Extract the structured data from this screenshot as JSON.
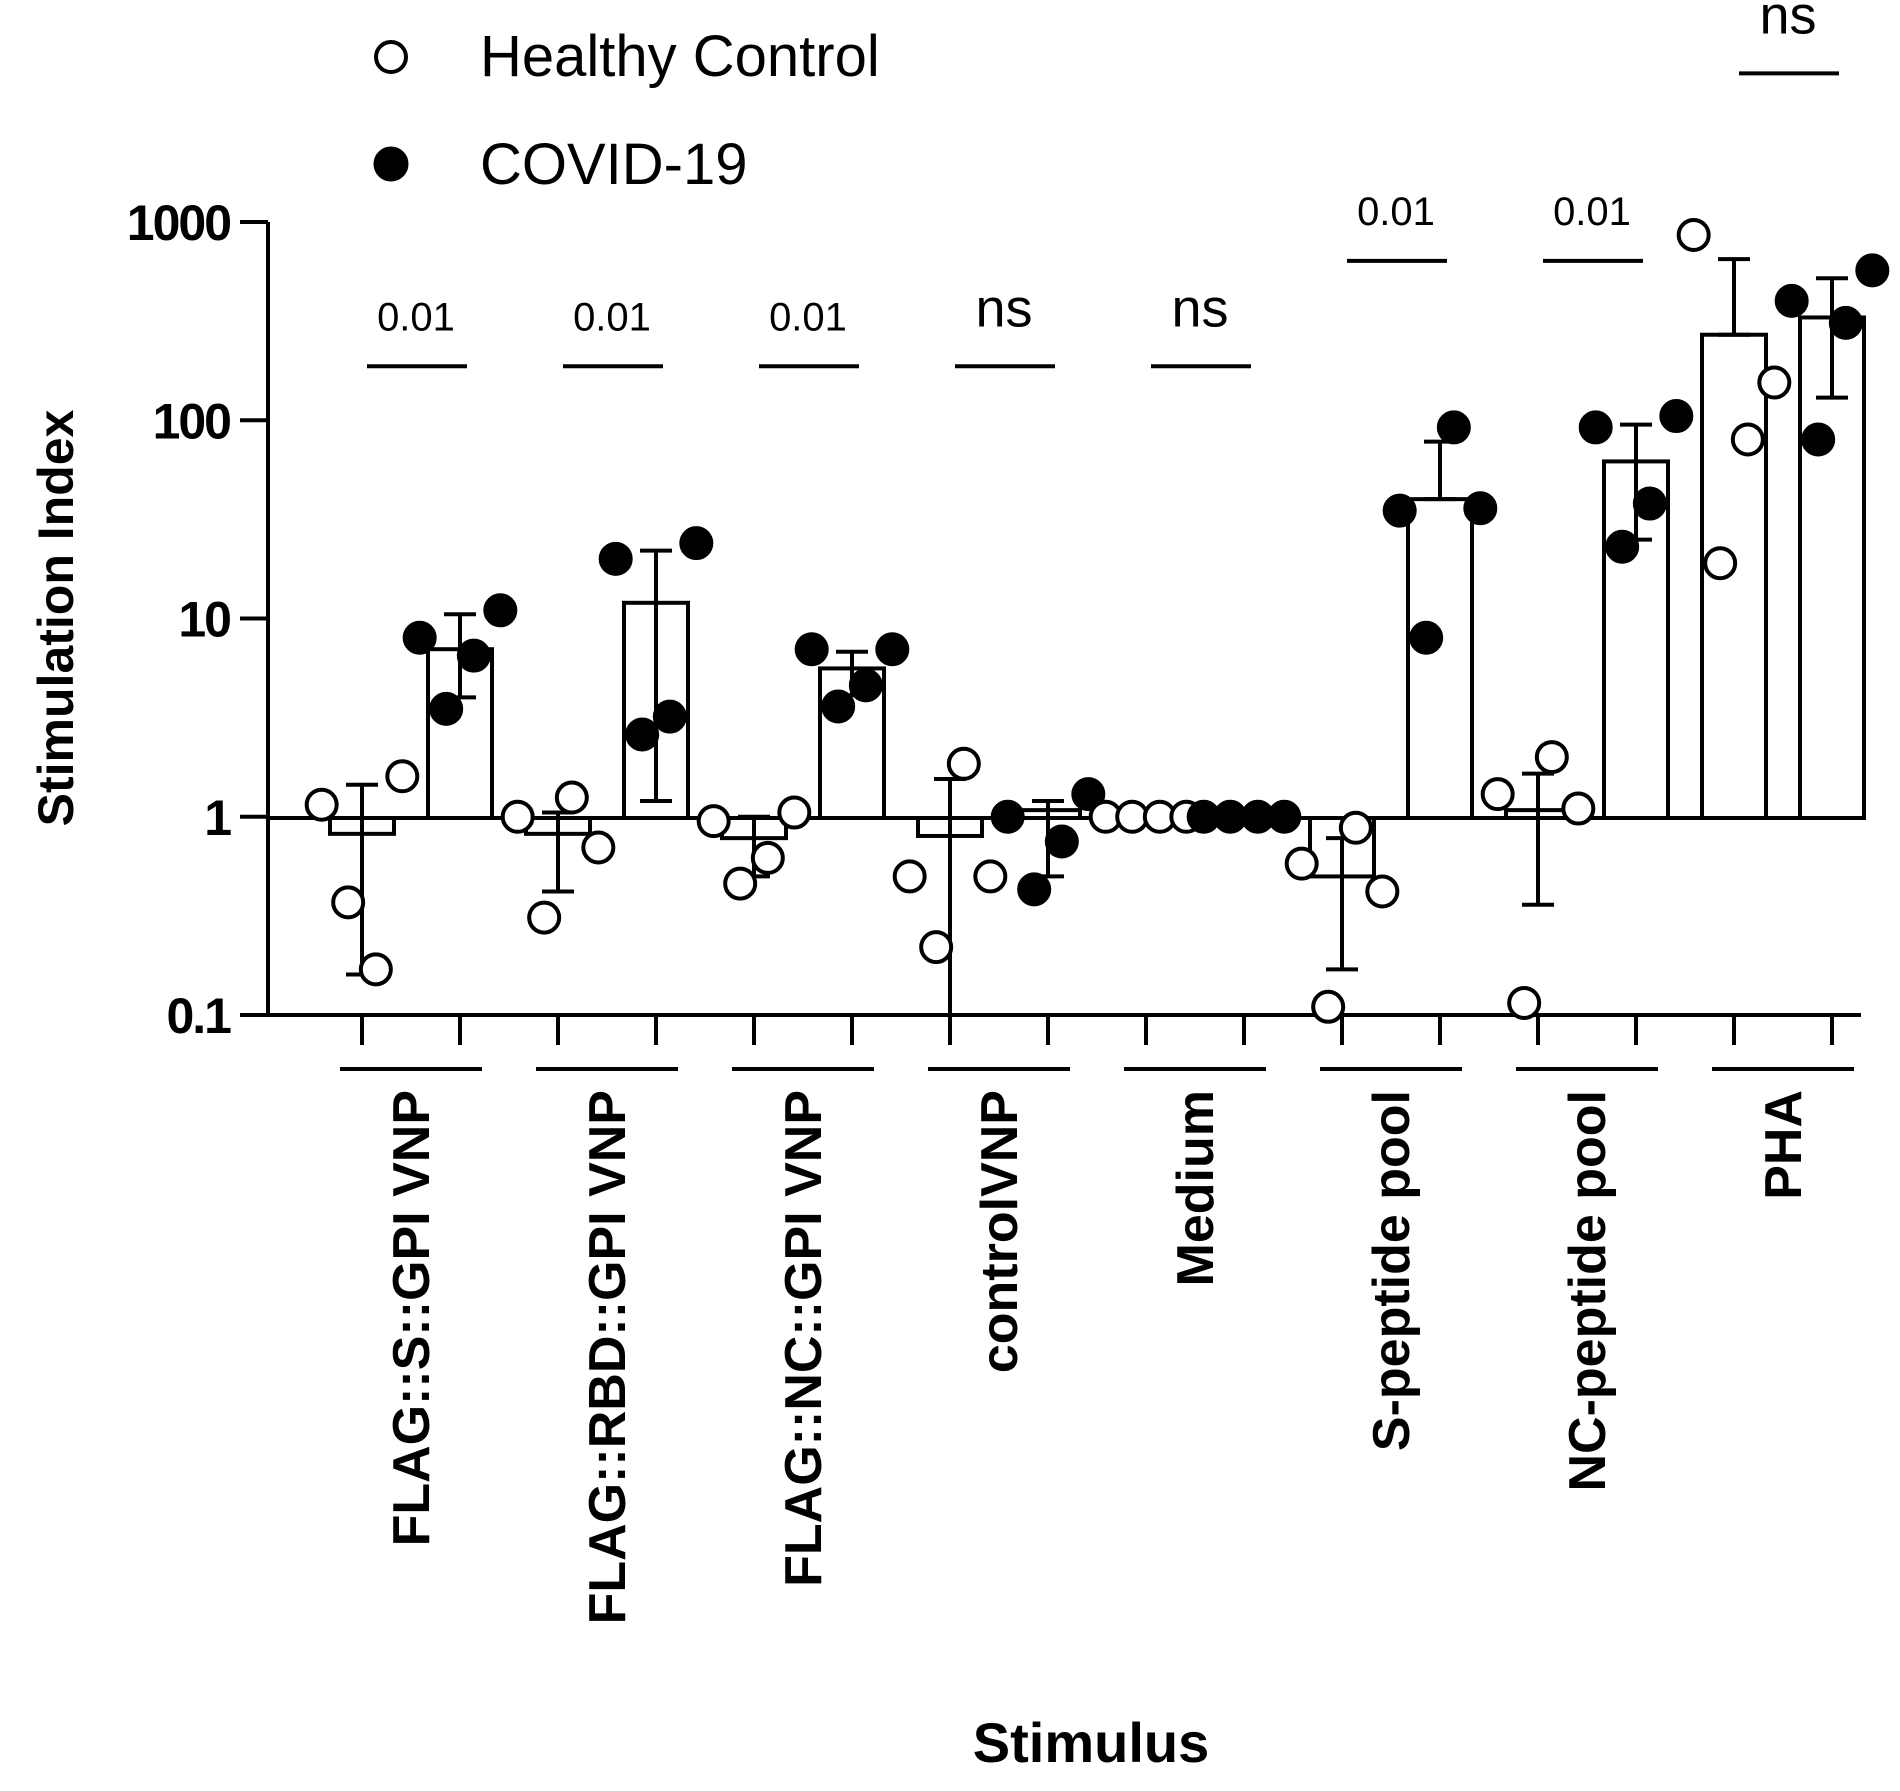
{
  "chart_data": {
    "type": "bar",
    "xlabel": "Stimulus",
    "ylabel": "Stimulation Index",
    "yscale": "log",
    "ylim": [
      0.1,
      1000
    ],
    "yticks": [
      {
        "value": 0.1,
        "label": "0.1"
      },
      {
        "value": 1,
        "label": "1"
      },
      {
        "value": 10,
        "label": "10"
      },
      {
        "value": 100,
        "label": "100"
      },
      {
        "value": 1000,
        "label": "1000"
      }
    ],
    "legend_position": "top-left",
    "categories": [
      "FLAG::S::GPI VNP",
      "FLAG::RBD::GPI VNP",
      "FLAG::NC::GPI VNP",
      "controlVNP",
      "Medium",
      "S-peptide pool",
      "NC-peptide pool",
      "PHA"
    ],
    "series": [
      {
        "name": "Healthy Control",
        "marker": "open-circle",
        "means": [
          0.82,
          0.82,
          0.78,
          0.8,
          1.0,
          0.5,
          1.08,
          270
        ],
        "err_low": [
          0.16,
          0.42,
          0.5,
          0.1,
          1.0,
          0.17,
          0.36,
          270
        ],
        "err_high": [
          1.45,
          1.05,
          1.0,
          1.55,
          1.0,
          0.78,
          1.65,
          650
        ],
        "points": [
          [
            1.15,
            0.37,
            0.17,
            1.6
          ],
          [
            1.0,
            0.31,
            1.25,
            0.7
          ],
          [
            0.95,
            0.46,
            0.62,
            1.05
          ],
          [
            0.5,
            0.22,
            1.85,
            0.5
          ],
          [
            1.0,
            1.0,
            1.0,
            1.0
          ],
          [
            0.58,
            0.11,
            0.88,
            0.42
          ],
          [
            1.3,
            0.115,
            2.0,
            1.1
          ],
          [
            860,
            19,
            80,
            155
          ]
        ]
      },
      {
        "name": "COVID-19",
        "marker": "filled-circle",
        "means": [
          7.0,
          12.0,
          5.6,
          1.08,
          1.0,
          40,
          62,
          330
        ],
        "err_low": [
          4.0,
          1.2,
          4.1,
          0.5,
          1.0,
          40,
          25,
          130
        ],
        "err_high": [
          10.5,
          22,
          6.8,
          1.2,
          1.0,
          78,
          95,
          520
        ],
        "points": [
          [
            8.0,
            3.5,
            6.5,
            11.0
          ],
          [
            20.0,
            2.6,
            3.2,
            24.0
          ],
          [
            7.0,
            3.6,
            4.6,
            7.0
          ],
          [
            1.0,
            0.43,
            0.75,
            1.3
          ],
          [
            1.0,
            1.0,
            1.0,
            1.0
          ],
          [
            35,
            8.0,
            92,
            36
          ],
          [
            92,
            23,
            38,
            105
          ],
          [
            400,
            80,
            310,
            570
          ]
        ]
      }
    ],
    "annotations": [
      {
        "category": 0,
        "text": "0.01",
        "y": 100
      },
      {
        "category": 1,
        "text": "0.01",
        "y": 100
      },
      {
        "category": 2,
        "text": "0.01",
        "y": 100
      },
      {
        "category": 3,
        "text": "ns",
        "y": 100
      },
      {
        "category": 4,
        "text": "ns",
        "y": 100
      },
      {
        "category": 5,
        "text": "0.01",
        "y": 340
      },
      {
        "category": 6,
        "text": "0.01",
        "y": 340
      },
      {
        "category": 7,
        "text": "ns",
        "y": 3000
      }
    ]
  }
}
